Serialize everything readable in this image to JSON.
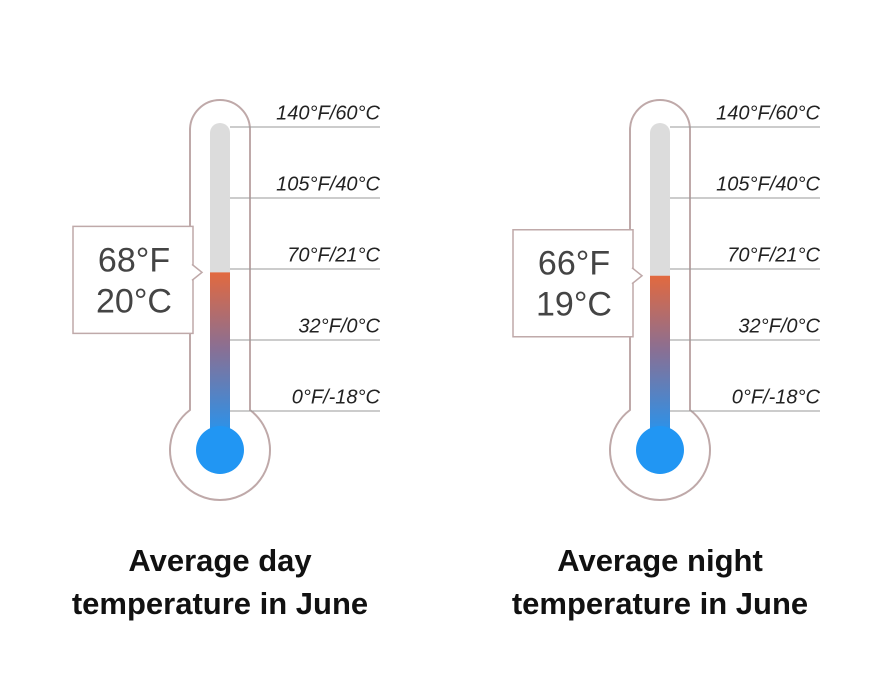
{
  "chart_data": [
    {
      "type": "thermometer",
      "title": [
        "Average day",
        "temperature in June"
      ],
      "values": [
        20
      ],
      "value_labels": [
        [
          "68°F",
          "20°C"
        ]
      ],
      "ylim": [
        -18,
        60
      ],
      "yticks": [
        {
          "value": 60,
          "label": "140°F/60°C"
        },
        {
          "value": 40,
          "label": "105°F/40°C"
        },
        {
          "value": 21,
          "label": "70°F/21°C"
        },
        {
          "value": 0,
          "label": "32°F/0°C"
        },
        {
          "value": -18,
          "label": "0°F/-18°C"
        }
      ],
      "color": "#2196f3"
    },
    {
      "type": "thermometer",
      "title": [
        "Average night",
        "temperature in June"
      ],
      "values": [
        19
      ],
      "value_labels": [
        [
          "66°F",
          "19°C"
        ]
      ],
      "ylim": [
        -18,
        60
      ],
      "yticks": [
        {
          "value": 60,
          "label": "140°F/60°C"
        },
        {
          "value": 40,
          "label": "105°F/40°C"
        },
        {
          "value": 21,
          "label": "70°F/21°C"
        },
        {
          "value": 0,
          "label": "32°F/0°C"
        },
        {
          "value": -18,
          "label": "0°F/-18°C"
        }
      ],
      "color": "#2196f3"
    }
  ]
}
